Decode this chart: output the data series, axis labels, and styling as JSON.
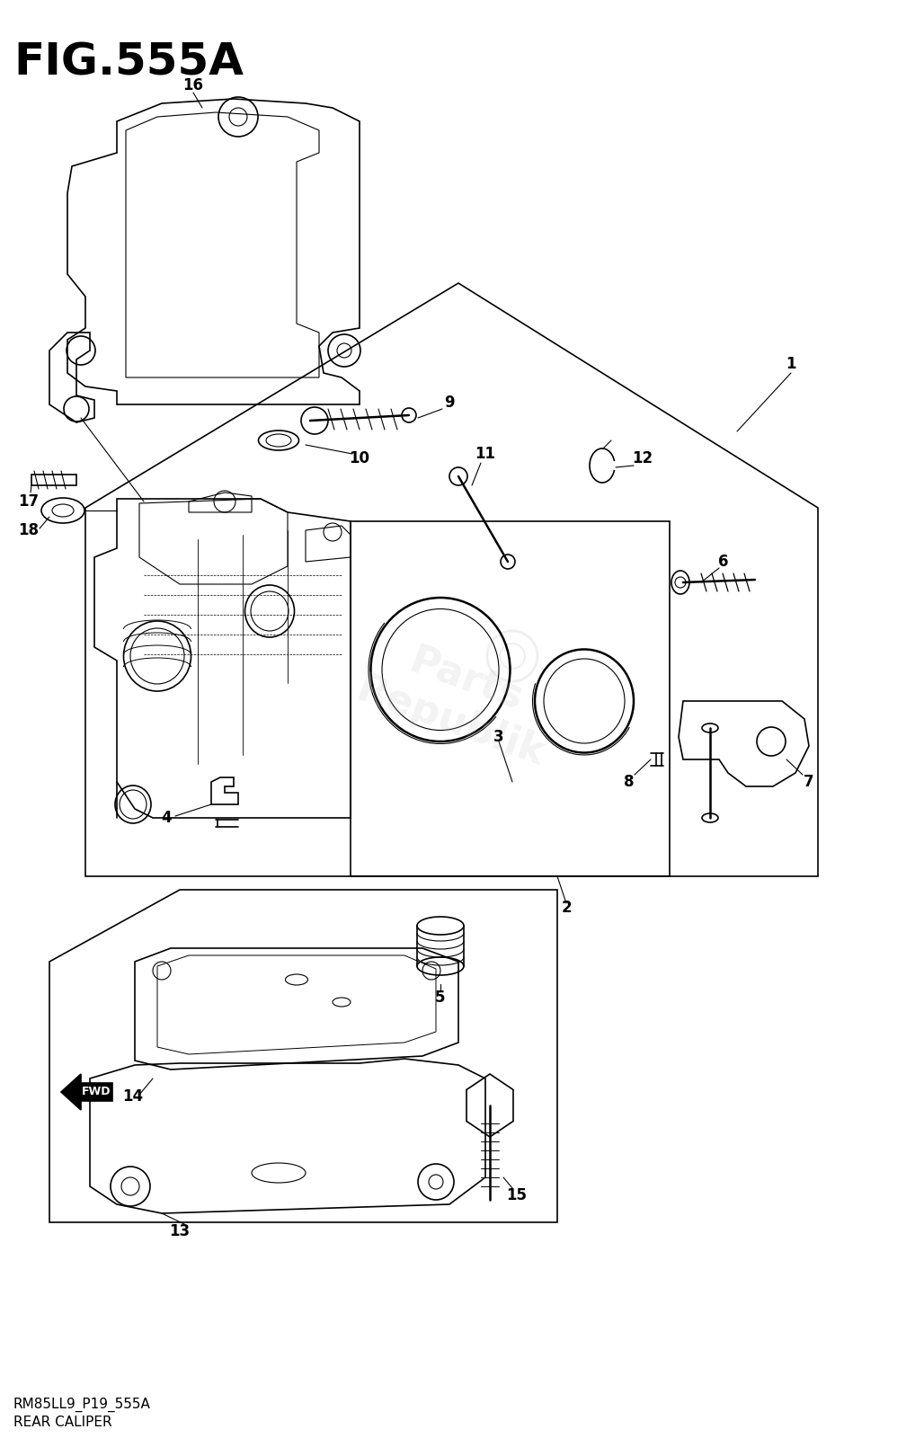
{
  "title": "FIG.555A",
  "subtitle1": "RM85LL9_P19_555A",
  "subtitle2": "REAR CALIPER",
  "bg_color": "#ffffff",
  "title_fontsize": 36,
  "title_fontweight": "bold",
  "subtitle_fontsize": 11,
  "label_fontsize": 12,
  "watermark_text": "PartsRepublik",
  "watermark_alpha": 0.18
}
